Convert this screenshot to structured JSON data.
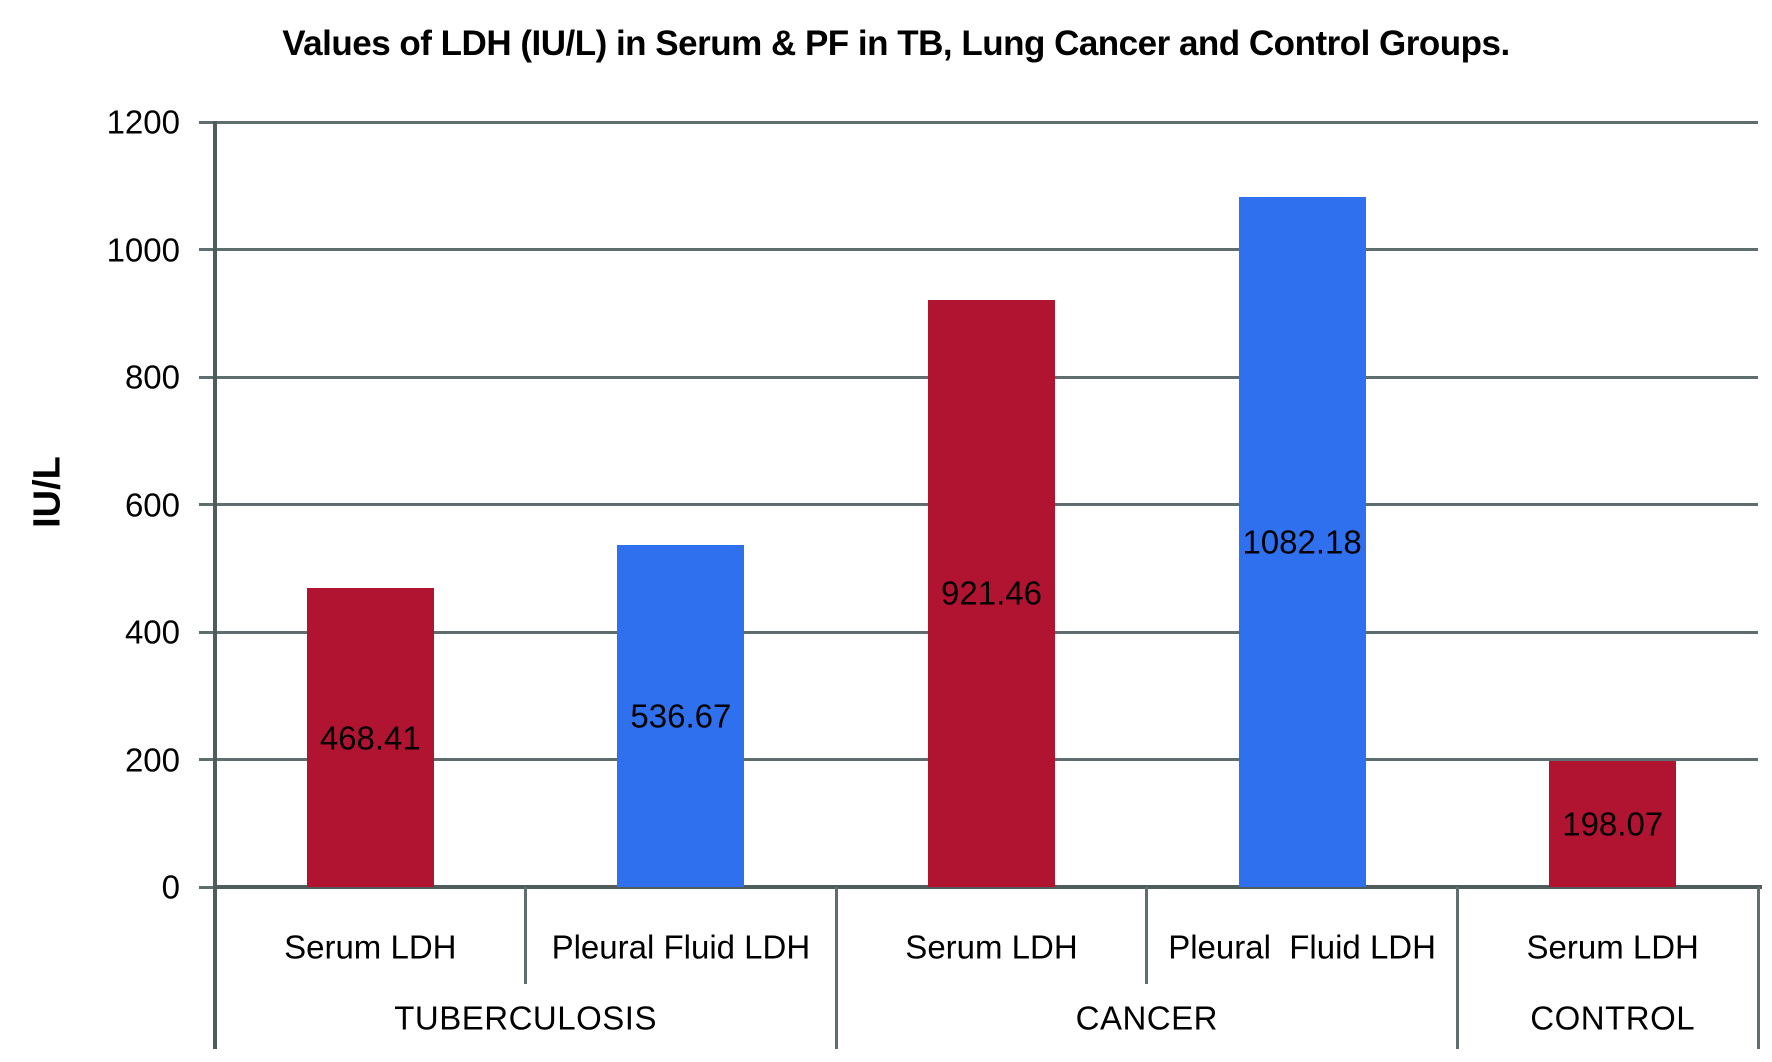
{
  "chart_data": {
    "type": "bar",
    "title": "Values of LDH (IU/L) in Serum & PF in TB, Lung Cancer and Control Groups.",
    "ylabel": "IU/L",
    "ylim": [
      0,
      1200
    ],
    "ytick_step": 200,
    "yticks": [
      0,
      200,
      400,
      600,
      800,
      1000,
      1200
    ],
    "grid": true,
    "legend": "none",
    "data_labels": "inside-center, two decimals",
    "groups": [
      {
        "label": "TUBERCULOSIS",
        "bars": [
          {
            "category": "Serum LDH",
            "series": "serum",
            "value": 468.41,
            "value_label": "468.41"
          },
          {
            "category": "Pleural Fluid LDH",
            "series": "pleural_fluid",
            "value": 536.67,
            "value_label": "536.67"
          }
        ]
      },
      {
        "label": "CANCER",
        "bars": [
          {
            "category": "Serum LDH",
            "series": "serum",
            "value": 921.46,
            "value_label": "921.46"
          },
          {
            "category": "Pleural  Fluid LDH",
            "series": "pleural_fluid",
            "value": 1082.18,
            "value_label": "1082.18"
          }
        ]
      },
      {
        "label": "CONTROL",
        "bars": [
          {
            "category": "Serum LDH",
            "series": "serum",
            "value": 198.07,
            "value_label": "198.07"
          }
        ]
      }
    ],
    "colors": {
      "serum_bar": "#B11430",
      "pleural_fluid_bar": "#2F70EE",
      "gridline": "#5E6D6D",
      "axis": "#4F5C5C",
      "text": "#000000",
      "background": "#FFFFFF"
    }
  }
}
